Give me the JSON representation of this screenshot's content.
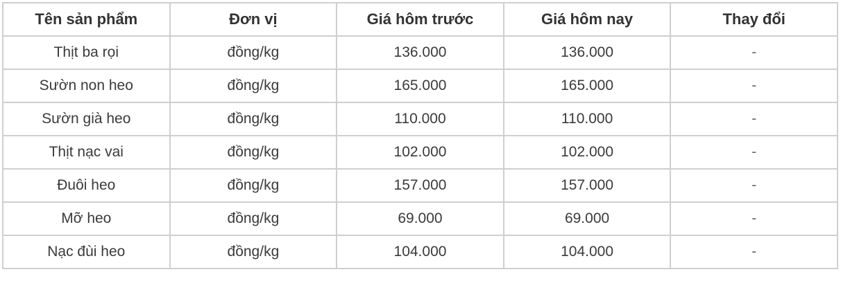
{
  "table": {
    "headers": [
      "Tên sản phẩm",
      "Đơn vị",
      "Giá hôm trước",
      "Giá hôm nay",
      "Thay đổi"
    ],
    "rows": [
      [
        "Thịt ba rọi",
        "đồng/kg",
        "136.000",
        "136.000",
        "-"
      ],
      [
        "Sườn non heo",
        "đồng/kg",
        "165.000",
        "165.000",
        "-"
      ],
      [
        "Sườn già heo",
        "đồng/kg",
        "110.000",
        "110.000",
        "-"
      ],
      [
        "Thịt nạc vai",
        "đồng/kg",
        "102.000",
        "102.000",
        "-"
      ],
      [
        "Đuôi heo",
        "đồng/kg",
        "157.000",
        "157.000",
        "-"
      ],
      [
        "Mỡ heo",
        "đồng/kg",
        "69.000",
        "69.000",
        "-"
      ],
      [
        "Nạc đùi heo",
        "đồng/kg",
        "104.000",
        "104.000",
        "-"
      ]
    ]
  }
}
